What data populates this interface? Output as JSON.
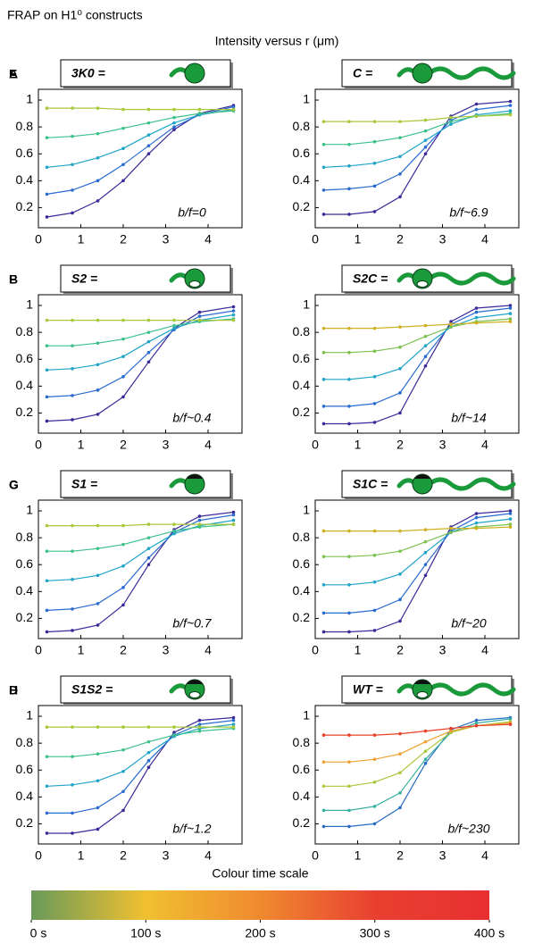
{
  "header": {
    "title": "FRAP on H1⁰ constructs",
    "subtitle": "Intensity versus r (μm)"
  },
  "chart_data": [
    {
      "type": "line",
      "panel": "A",
      "construct": "3K0   =",
      "annotation": "b/f=0",
      "x": [
        0.2,
        0.8,
        1.4,
        2.0,
        2.6,
        3.2,
        3.8,
        4.6
      ],
      "xlim": [
        0,
        4.8
      ],
      "ylim": [
        0.05,
        1.08
      ],
      "xticks": [
        0,
        1,
        2,
        3,
        4
      ],
      "yticks": [
        0.2,
        0.4,
        0.6,
        0.8,
        1
      ],
      "series": [
        {
          "color": "#3b2a98",
          "values": [
            0.13,
            0.16,
            0.25,
            0.4,
            0.6,
            0.78,
            0.9,
            0.96
          ]
        },
        {
          "color": "#2a6bd0",
          "values": [
            0.3,
            0.33,
            0.4,
            0.52,
            0.66,
            0.8,
            0.89,
            0.95
          ]
        },
        {
          "color": "#1fa3c8",
          "values": [
            0.5,
            0.52,
            0.57,
            0.64,
            0.74,
            0.83,
            0.89,
            0.93
          ]
        },
        {
          "color": "#3cc08a",
          "values": [
            0.72,
            0.73,
            0.75,
            0.79,
            0.83,
            0.87,
            0.9,
            0.92
          ]
        },
        {
          "color": "#a8c83a",
          "values": [
            0.94,
            0.94,
            0.94,
            0.93,
            0.93,
            0.93,
            0.93,
            0.93
          ]
        }
      ]
    },
    {
      "type": "line",
      "panel": "E",
      "construct": "C   =",
      "annotation": "b/f~6.9",
      "x": [
        0.2,
        0.8,
        1.4,
        2.0,
        2.6,
        3.2,
        3.8,
        4.6
      ],
      "xlim": [
        0,
        4.8
      ],
      "ylim": [
        0.05,
        1.08
      ],
      "xticks": [
        0,
        1,
        2,
        3,
        4
      ],
      "yticks": [
        0.2,
        0.4,
        0.6,
        0.8,
        1
      ],
      "series": [
        {
          "color": "#3b2a98",
          "values": [
            0.15,
            0.15,
            0.17,
            0.28,
            0.6,
            0.88,
            0.97,
            0.99
          ]
        },
        {
          "color": "#2a6bd0",
          "values": [
            0.33,
            0.34,
            0.36,
            0.45,
            0.65,
            0.85,
            0.93,
            0.96
          ]
        },
        {
          "color": "#1fa3c8",
          "values": [
            0.5,
            0.51,
            0.53,
            0.58,
            0.7,
            0.82,
            0.89,
            0.92
          ]
        },
        {
          "color": "#3cc08a",
          "values": [
            0.67,
            0.67,
            0.69,
            0.72,
            0.77,
            0.84,
            0.88,
            0.9
          ]
        },
        {
          "color": "#a8c83a",
          "values": [
            0.84,
            0.84,
            0.84,
            0.84,
            0.85,
            0.87,
            0.88,
            0.89
          ]
        }
      ]
    },
    {
      "type": "line",
      "panel": "B",
      "construct": "S2   =",
      "annotation": "b/f~0.4",
      "x": [
        0.2,
        0.8,
        1.4,
        2.0,
        2.6,
        3.2,
        3.8,
        4.6
      ],
      "xlim": [
        0,
        4.8
      ],
      "ylim": [
        0.05,
        1.08
      ],
      "xticks": [
        0,
        1,
        2,
        3,
        4
      ],
      "yticks": [
        0.2,
        0.4,
        0.6,
        0.8,
        1
      ],
      "series": [
        {
          "color": "#3b2a98",
          "values": [
            0.14,
            0.15,
            0.19,
            0.32,
            0.58,
            0.83,
            0.95,
            0.99
          ]
        },
        {
          "color": "#2a6bd0",
          "values": [
            0.32,
            0.33,
            0.37,
            0.47,
            0.65,
            0.82,
            0.92,
            0.96
          ]
        },
        {
          "color": "#1fa3c8",
          "values": [
            0.52,
            0.53,
            0.56,
            0.62,
            0.73,
            0.83,
            0.89,
            0.93
          ]
        },
        {
          "color": "#3cc08a",
          "values": [
            0.7,
            0.7,
            0.72,
            0.75,
            0.8,
            0.85,
            0.88,
            0.9
          ]
        },
        {
          "color": "#a8c83a",
          "values": [
            0.89,
            0.89,
            0.89,
            0.89,
            0.89,
            0.89,
            0.89,
            0.89
          ]
        }
      ]
    },
    {
      "type": "line",
      "panel": "F",
      "construct": "S2C =",
      "annotation": "b/f~14",
      "x": [
        0.2,
        0.8,
        1.4,
        2.0,
        2.6,
        3.2,
        3.8,
        4.6
      ],
      "xlim": [
        0,
        4.8
      ],
      "ylim": [
        0.05,
        1.08
      ],
      "xticks": [
        0,
        1,
        2,
        3,
        4
      ],
      "yticks": [
        0.2,
        0.4,
        0.6,
        0.8,
        1
      ],
      "series": [
        {
          "color": "#3b2a98",
          "values": [
            0.12,
            0.12,
            0.13,
            0.2,
            0.55,
            0.88,
            0.98,
            1.0
          ]
        },
        {
          "color": "#2a6bd0",
          "values": [
            0.25,
            0.25,
            0.27,
            0.35,
            0.62,
            0.86,
            0.95,
            0.98
          ]
        },
        {
          "color": "#1fa3c8",
          "values": [
            0.45,
            0.45,
            0.47,
            0.53,
            0.7,
            0.84,
            0.91,
            0.94
          ]
        },
        {
          "color": "#7cc050",
          "values": [
            0.65,
            0.65,
            0.66,
            0.69,
            0.77,
            0.84,
            0.88,
            0.9
          ]
        },
        {
          "color": "#d0b020",
          "values": [
            0.83,
            0.83,
            0.83,
            0.84,
            0.85,
            0.86,
            0.87,
            0.88
          ]
        }
      ]
    },
    {
      "type": "line",
      "panel": "C",
      "construct": "S1   =",
      "annotation": "b/f~0.7",
      "x": [
        0.2,
        0.8,
        1.4,
        2.0,
        2.6,
        3.2,
        3.8,
        4.6
      ],
      "xlim": [
        0,
        4.8
      ],
      "ylim": [
        0.05,
        1.08
      ],
      "xticks": [
        0,
        1,
        2,
        3,
        4
      ],
      "yticks": [
        0.2,
        0.4,
        0.6,
        0.8,
        1
      ],
      "series": [
        {
          "color": "#3b2a98",
          "values": [
            0.1,
            0.11,
            0.15,
            0.3,
            0.6,
            0.86,
            0.96,
            0.99
          ]
        },
        {
          "color": "#2a6bd0",
          "values": [
            0.26,
            0.27,
            0.31,
            0.43,
            0.65,
            0.84,
            0.93,
            0.97
          ]
        },
        {
          "color": "#1fa3c8",
          "values": [
            0.48,
            0.49,
            0.52,
            0.59,
            0.72,
            0.83,
            0.89,
            0.93
          ]
        },
        {
          "color": "#3cc08a",
          "values": [
            0.7,
            0.7,
            0.72,
            0.75,
            0.8,
            0.85,
            0.88,
            0.9
          ]
        },
        {
          "color": "#a8c83a",
          "values": [
            0.89,
            0.89,
            0.89,
            0.89,
            0.9,
            0.9,
            0.9,
            0.9
          ]
        }
      ]
    },
    {
      "type": "line",
      "panel": "G",
      "construct": "S1C =",
      "annotation": "b/f~20",
      "x": [
        0.2,
        0.8,
        1.4,
        2.0,
        2.6,
        3.2,
        3.8,
        4.6
      ],
      "xlim": [
        0,
        4.8
      ],
      "ylim": [
        0.05,
        1.08
      ],
      "xticks": [
        0,
        1,
        2,
        3,
        4
      ],
      "yticks": [
        0.2,
        0.4,
        0.6,
        0.8,
        1
      ],
      "series": [
        {
          "color": "#3b2a98",
          "values": [
            0.1,
            0.1,
            0.11,
            0.18,
            0.52,
            0.88,
            0.98,
            1.0
          ]
        },
        {
          "color": "#2a6bd0",
          "values": [
            0.24,
            0.24,
            0.26,
            0.34,
            0.6,
            0.85,
            0.95,
            0.98
          ]
        },
        {
          "color": "#1fa3c8",
          "values": [
            0.45,
            0.45,
            0.47,
            0.53,
            0.69,
            0.84,
            0.91,
            0.94
          ]
        },
        {
          "color": "#7cc050",
          "values": [
            0.66,
            0.66,
            0.67,
            0.7,
            0.77,
            0.84,
            0.88,
            0.9
          ]
        },
        {
          "color": "#d0b020",
          "values": [
            0.85,
            0.85,
            0.85,
            0.85,
            0.86,
            0.87,
            0.87,
            0.88
          ]
        }
      ]
    },
    {
      "type": "line",
      "panel": "D",
      "construct": "S1S2 =",
      "annotation": "b/f~1.2",
      "x": [
        0.2,
        0.8,
        1.4,
        2.0,
        2.6,
        3.2,
        3.8,
        4.6
      ],
      "xlim": [
        0,
        4.8
      ],
      "ylim": [
        0.05,
        1.08
      ],
      "xticks": [
        0,
        1,
        2,
        3,
        4
      ],
      "yticks": [
        0.2,
        0.4,
        0.6,
        0.8,
        1
      ],
      "series": [
        {
          "color": "#3b2a98",
          "values": [
            0.13,
            0.13,
            0.16,
            0.3,
            0.62,
            0.88,
            0.97,
            0.99
          ]
        },
        {
          "color": "#2a6bd0",
          "values": [
            0.28,
            0.28,
            0.32,
            0.44,
            0.67,
            0.86,
            0.94,
            0.97
          ]
        },
        {
          "color": "#1fa3c8",
          "values": [
            0.48,
            0.49,
            0.52,
            0.59,
            0.73,
            0.85,
            0.91,
            0.94
          ]
        },
        {
          "color": "#3cc08a",
          "values": [
            0.7,
            0.7,
            0.72,
            0.75,
            0.81,
            0.86,
            0.89,
            0.91
          ]
        },
        {
          "color": "#a8c83a",
          "values": [
            0.92,
            0.92,
            0.92,
            0.92,
            0.92,
            0.92,
            0.92,
            0.92
          ]
        }
      ]
    },
    {
      "type": "line",
      "panel": "H",
      "construct": "WT =",
      "annotation": "b/f~230",
      "x": [
        0.2,
        0.8,
        1.4,
        2.0,
        2.6,
        3.2,
        3.8,
        4.6
      ],
      "xlim": [
        0,
        4.8
      ],
      "ylim": [
        0.05,
        1.08
      ],
      "xticks": [
        0,
        1,
        2,
        3,
        4
      ],
      "yticks": [
        0.2,
        0.4,
        0.6,
        0.8,
        1
      ],
      "series": [
        {
          "color": "#2b6cc4",
          "values": [
            0.18,
            0.18,
            0.2,
            0.32,
            0.65,
            0.9,
            0.97,
            0.99
          ]
        },
        {
          "color": "#39b0a0",
          "values": [
            0.3,
            0.3,
            0.33,
            0.43,
            0.68,
            0.88,
            0.95,
            0.98
          ]
        },
        {
          "color": "#a8c83a",
          "values": [
            0.48,
            0.48,
            0.51,
            0.58,
            0.74,
            0.88,
            0.93,
            0.96
          ]
        },
        {
          "color": "#f0a030",
          "values": [
            0.66,
            0.66,
            0.68,
            0.72,
            0.81,
            0.89,
            0.93,
            0.95
          ]
        },
        {
          "color": "#e8402a",
          "values": [
            0.86,
            0.86,
            0.86,
            0.87,
            0.89,
            0.91,
            0.93,
            0.94
          ]
        }
      ]
    },
    {
      "type": "colorbar",
      "title": "Colour time scale",
      "xlim": [
        0,
        400
      ],
      "xticks": [
        {
          "value": 0,
          "label": "0 s"
        },
        {
          "value": 100,
          "label": "100 s"
        },
        {
          "value": 200,
          "label": "200 s"
        },
        {
          "value": 300,
          "label": "300 s"
        },
        {
          "value": 400,
          "label": "400 s"
        }
      ],
      "colors": [
        "#6a9a5a",
        "#f0c030",
        "#f08a30",
        "#e84030",
        "#e83030"
      ]
    }
  ]
}
